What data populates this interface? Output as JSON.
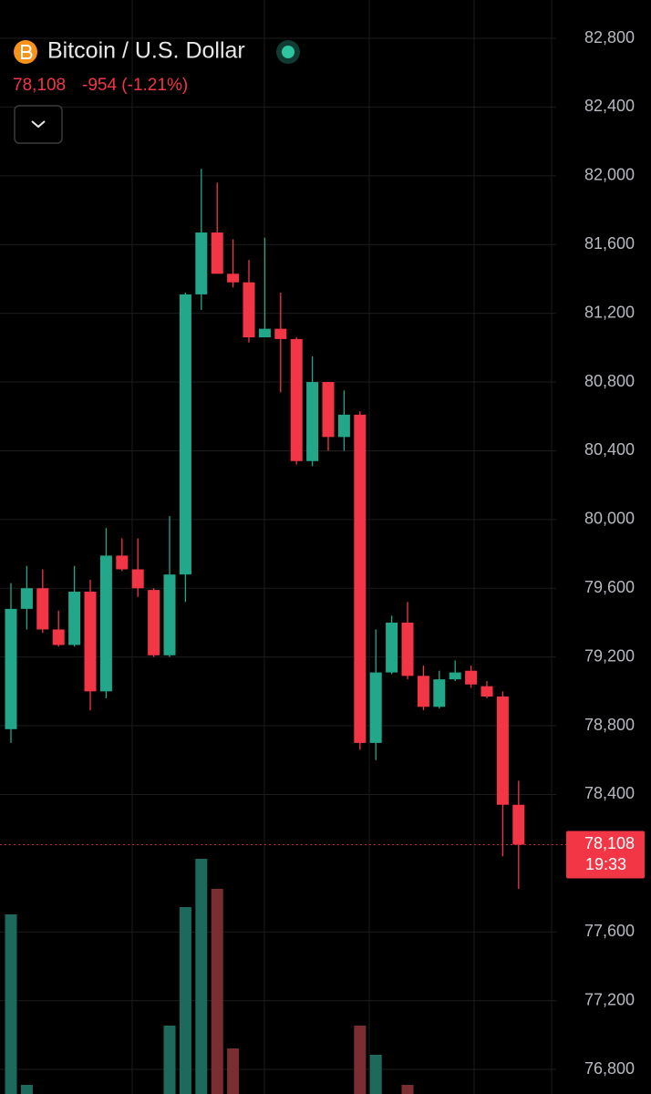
{
  "chart_data": {
    "type": "candlestick",
    "title": "Bitcoin / U.S. Dollar",
    "price_label": "78,108",
    "change_label": "-954 (-1.21%)",
    "last_price": {
      "value": 78108,
      "label": "78,108"
    },
    "countdown": "19:33",
    "open": [
      78780,
      79480,
      79600,
      79360,
      79270,
      79580,
      79000,
      79790,
      79710,
      79590,
      79210,
      79680,
      81310,
      81670,
      81430,
      81380,
      81060,
      81110,
      81050,
      80340,
      80800,
      80480,
      80610,
      78700,
      79110,
      79400,
      79090,
      78910,
      79070,
      79120,
      79030,
      78970,
      78340
    ],
    "high": [
      79630,
      79730,
      79710,
      79470,
      79730,
      79650,
      79950,
      79890,
      79890,
      79600,
      80020,
      81320,
      82040,
      81960,
      81630,
      81510,
      81640,
      81320,
      81060,
      80950,
      80800,
      80750,
      80630,
      79360,
      79440,
      79520,
      79150,
      79120,
      79180,
      79150,
      79060,
      79000,
      78480
    ],
    "low": [
      78700,
      79360,
      79340,
      79260,
      79260,
      78890,
      78960,
      79700,
      79550,
      79200,
      79200,
      79520,
      81220,
      81430,
      81350,
      81030,
      81060,
      80740,
      80320,
      80310,
      80400,
      80400,
      78660,
      78600,
      79100,
      79070,
      78890,
      78900,
      79060,
      79020,
      78960,
      78040,
      77850
    ],
    "close": [
      79480,
      79600,
      79360,
      79270,
      79580,
      79000,
      79790,
      79710,
      79600,
      79210,
      79680,
      81310,
      81670,
      81430,
      81380,
      81060,
      81110,
      81050,
      80340,
      80800,
      80480,
      80610,
      78700,
      79110,
      79400,
      79090,
      78910,
      79070,
      79110,
      79040,
      78970,
      78340,
      78108
    ],
    "volume": [
      197,
      10,
      null,
      null,
      null,
      null,
      null,
      null,
      null,
      null,
      75,
      205,
      258,
      225,
      50,
      null,
      null,
      null,
      null,
      null,
      null,
      null,
      75,
      43,
      null,
      10,
      null,
      null,
      null,
      null,
      null,
      null,
      null
    ],
    "volume_lim": [
      0,
      1200
    ],
    "up_color": "#22a78b",
    "down_color": "#f23645",
    "volume_up_color": "#1d6a5c",
    "volume_down_color": "#7b2e31",
    "ylim": [
      76657,
      83023
    ],
    "yticks": [
      {
        "value": 82800,
        "label": "82,800"
      },
      {
        "value": 82400,
        "label": "82,400"
      },
      {
        "value": 82000,
        "label": "82,000"
      },
      {
        "value": 81600,
        "label": "81,600"
      },
      {
        "value": 81200,
        "label": "81,200"
      },
      {
        "value": 80800,
        "label": "80,800"
      },
      {
        "value": 80400,
        "label": "80,400"
      },
      {
        "value": 80000,
        "label": "80,000"
      },
      {
        "value": 79600,
        "label": "79,600"
      },
      {
        "value": 79200,
        "label": "79,200"
      },
      {
        "value": 78800,
        "label": "78,800"
      },
      {
        "value": 78400,
        "label": "78,400"
      },
      {
        "value": 77600,
        "label": "77,600"
      },
      {
        "value": 77200,
        "label": "77,200"
      },
      {
        "value": 76800,
        "label": "76,800"
      }
    ],
    "grid": true
  }
}
